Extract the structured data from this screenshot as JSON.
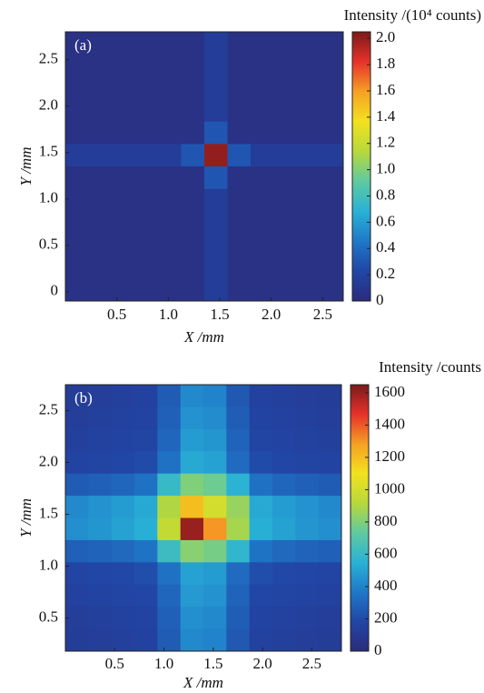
{
  "chart_data": [
    {
      "type": "heatmap",
      "panel_label": "(a)",
      "xlabel": "X /mm",
      "ylabel": "Y /mm",
      "colorbar_label": "Intensity /(10⁴ counts)",
      "xlim": [
        0,
        2.7
      ],
      "ylim": [
        -0.1,
        2.8
      ],
      "xticks": [
        0.5,
        {
          "value": 1,
          "label": "1.0"
        },
        1.5,
        {
          "value": 2,
          "label": "2.0"
        },
        2.5
      ],
      "yticks": [
        0,
        0.5,
        {
          "value": 1,
          "label": "1.0"
        },
        1.5,
        {
          "value": 2,
          "label": "2.0"
        },
        2.5
      ],
      "clim": [
        0,
        2.05
      ],
      "cticks": [
        0,
        0.2,
        0.4,
        0.6,
        0.8,
        {
          "value": 1,
          "label": "1.0"
        },
        1.2,
        1.4,
        1.6,
        1.8,
        {
          "value": 2,
          "label": "2.0"
        }
      ],
      "colormap": [
        "#2b2c7c",
        "#2146a6",
        "#1f78c8",
        "#29b2d6",
        "#5fcaa0",
        "#b8d83a",
        "#f2e21e",
        "#f6a024",
        "#e7312a",
        "#7a1a1a"
      ],
      "z": [
        [
          0.05,
          0.05,
          0.05,
          0.05,
          0.05,
          0.05,
          0.15,
          0.05,
          0.05,
          0.05,
          0.05,
          0.05
        ],
        [
          0.05,
          0.05,
          0.05,
          0.05,
          0.05,
          0.05,
          0.15,
          0.05,
          0.05,
          0.05,
          0.05,
          0.05
        ],
        [
          0.05,
          0.05,
          0.05,
          0.05,
          0.05,
          0.05,
          0.15,
          0.05,
          0.05,
          0.05,
          0.05,
          0.05
        ],
        [
          0.05,
          0.05,
          0.05,
          0.05,
          0.05,
          0.05,
          0.15,
          0.05,
          0.05,
          0.05,
          0.05,
          0.05
        ],
        [
          0.05,
          0.05,
          0.05,
          0.05,
          0.05,
          0.05,
          0.3,
          0.05,
          0.05,
          0.05,
          0.05,
          0.05
        ],
        [
          0.15,
          0.15,
          0.15,
          0.15,
          0.15,
          0.3,
          2.0,
          0.3,
          0.15,
          0.15,
          0.15,
          0.15
        ],
        [
          0.05,
          0.05,
          0.05,
          0.05,
          0.05,
          0.05,
          0.3,
          0.05,
          0.05,
          0.05,
          0.05,
          0.05
        ],
        [
          0.05,
          0.05,
          0.05,
          0.05,
          0.05,
          0.05,
          0.15,
          0.05,
          0.05,
          0.05,
          0.05,
          0.05
        ],
        [
          0.05,
          0.05,
          0.05,
          0.05,
          0.05,
          0.05,
          0.15,
          0.05,
          0.05,
          0.05,
          0.05,
          0.05
        ],
        [
          0.05,
          0.05,
          0.05,
          0.05,
          0.05,
          0.05,
          0.15,
          0.05,
          0.05,
          0.05,
          0.05,
          0.05
        ],
        [
          0.05,
          0.05,
          0.05,
          0.05,
          0.05,
          0.05,
          0.15,
          0.05,
          0.05,
          0.05,
          0.05,
          0.05
        ],
        [
          0.05,
          0.05,
          0.05,
          0.05,
          0.05,
          0.05,
          0.15,
          0.05,
          0.05,
          0.05,
          0.05,
          0.05
        ]
      ]
    },
    {
      "type": "heatmap",
      "panel_label": "(b)",
      "xlabel": "X /mm",
      "ylabel": "Y /mm",
      "colorbar_label": "Intensity /counts",
      "xlim": [
        0,
        2.8
      ],
      "ylim": [
        0.18,
        2.75
      ],
      "xticks": [
        0.5,
        {
          "value": 1,
          "label": "1.0"
        },
        1.5,
        {
          "value": 2,
          "label": "2.0"
        },
        2.5
      ],
      "yticks": [
        0.5,
        {
          "value": 1,
          "label": "1.0"
        },
        1.5,
        {
          "value": 2,
          "label": "2.0"
        },
        2.5
      ],
      "clim": [
        0,
        1650
      ],
      "cticks": [
        0,
        200,
        400,
        600,
        800,
        1000,
        1200,
        1400,
        1600
      ],
      "colormap": [
        "#2b2c7c",
        "#2146a6",
        "#1f78c8",
        "#29b2d6",
        "#5fcaa0",
        "#b8d83a",
        "#f2e21e",
        "#f6a024",
        "#e7312a",
        "#7a1a1a"
      ],
      "z": [
        [
          120,
          130,
          140,
          150,
          260,
          420,
          400,
          250,
          150,
          140,
          130,
          120
        ],
        [
          130,
          140,
          150,
          160,
          280,
          450,
          430,
          270,
          160,
          150,
          140,
          130
        ],
        [
          140,
          150,
          160,
          170,
          300,
          480,
          460,
          290,
          170,
          160,
          150,
          140
        ],
        [
          160,
          170,
          180,
          200,
          340,
          520,
          500,
          320,
          200,
          180,
          170,
          160
        ],
        [
          260,
          280,
          300,
          340,
          600,
          800,
          760,
          560,
          340,
          300,
          280,
          260
        ],
        [
          420,
          450,
          480,
          520,
          900,
          1200,
          1000,
          850,
          520,
          480,
          450,
          420
        ],
        [
          440,
          460,
          500,
          540,
          950,
          1600,
          1300,
          880,
          540,
          500,
          460,
          440
        ],
        [
          280,
          290,
          310,
          350,
          620,
          820,
          780,
          580,
          350,
          310,
          290,
          280
        ],
        [
          170,
          180,
          190,
          210,
          340,
          500,
          480,
          320,
          210,
          190,
          180,
          170
        ],
        [
          150,
          160,
          170,
          180,
          300,
          470,
          450,
          290,
          180,
          170,
          160,
          150
        ],
        [
          130,
          140,
          150,
          160,
          280,
          440,
          420,
          270,
          160,
          150,
          140,
          130
        ],
        [
          120,
          130,
          140,
          150,
          260,
          420,
          400,
          250,
          150,
          140,
          130,
          120
        ]
      ]
    }
  ]
}
